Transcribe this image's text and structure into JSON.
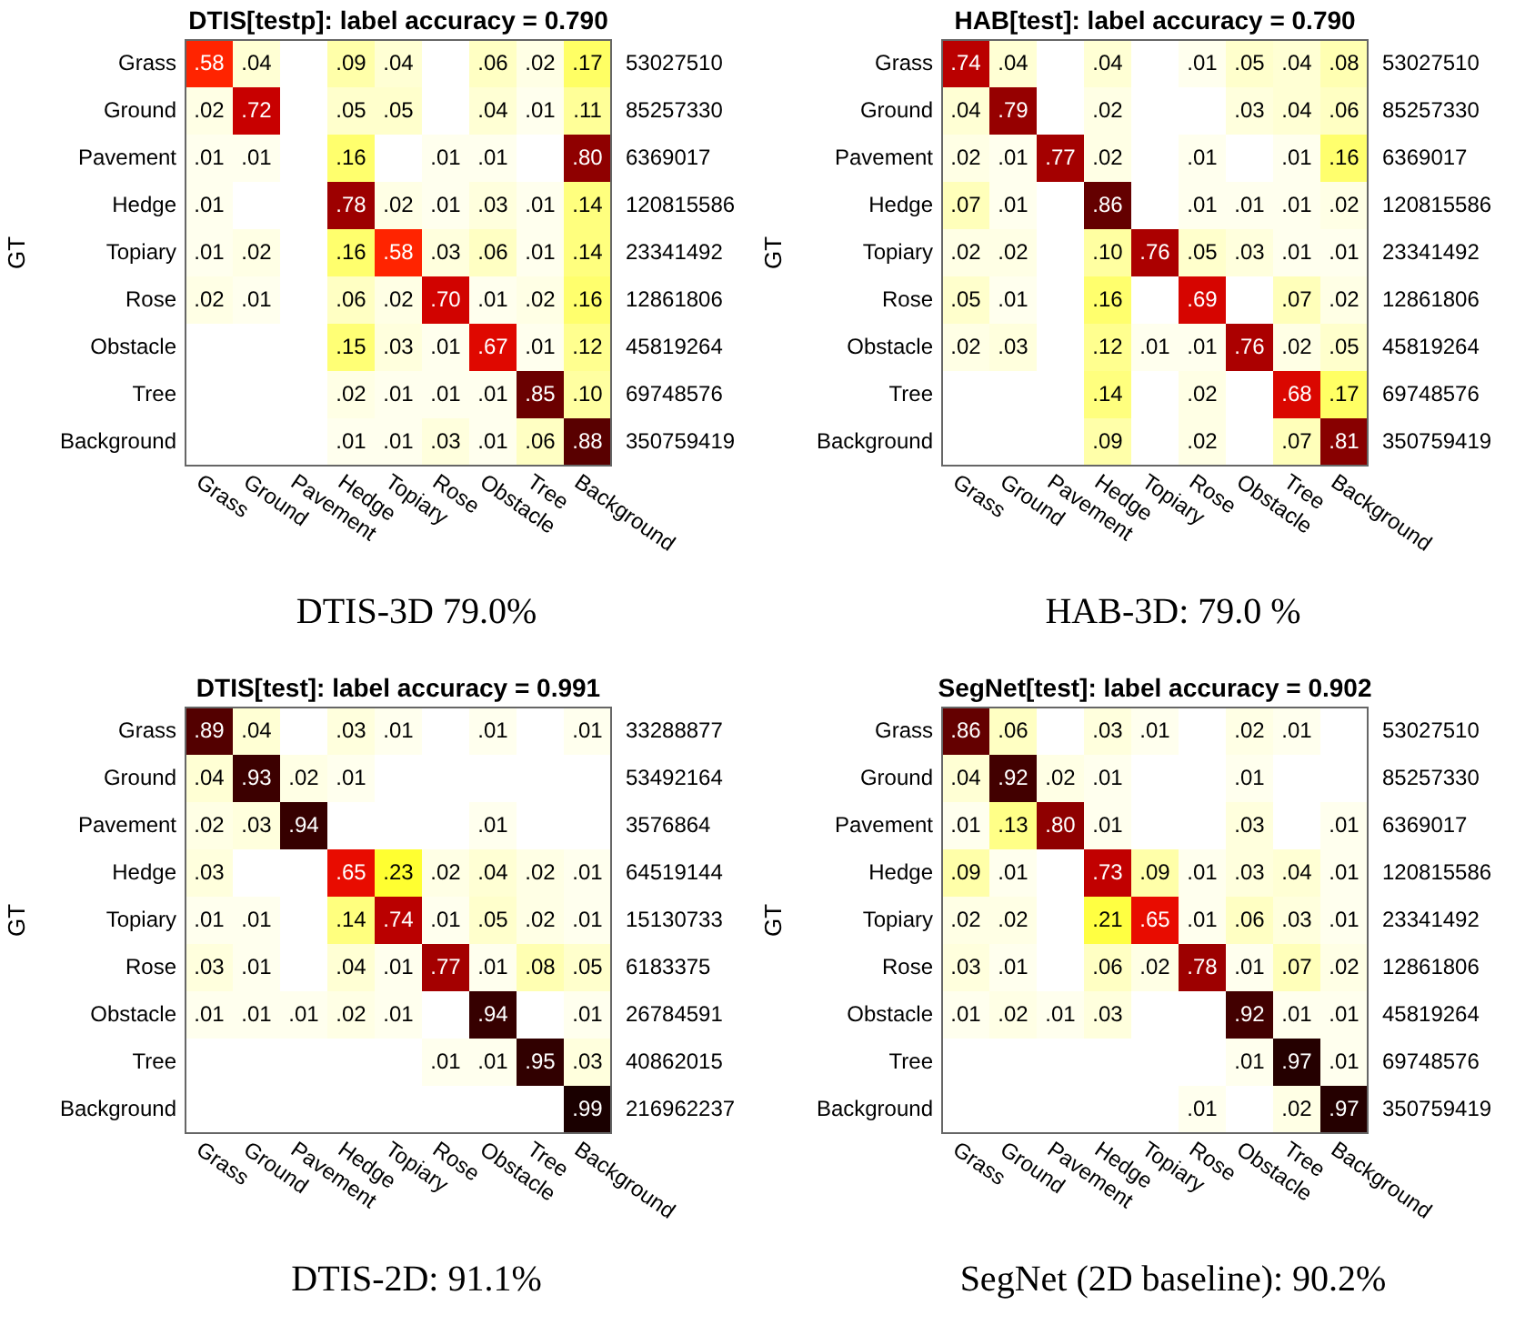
{
  "chart_data": [
    {
      "type": "heatmap",
      "title": "DTIS[testp]: label accuracy = 0.790",
      "ylabel": "GT",
      "annotations": [
        "DTIS-3D 79.0%"
      ],
      "categories": [
        "Grass",
        "Ground",
        "Pavement",
        "Hedge",
        "Topiary",
        "Rose",
        "Obstacle",
        "Tree",
        "Background"
      ],
      "y_categories": [
        "Grass",
        "Ground",
        "Pavement",
        "Hedge",
        "Topiary",
        "Rose",
        "Obstacle",
        "Tree",
        "Background"
      ],
      "y2_categories": [
        "53027510",
        "85257330",
        "6369017",
        "120815586",
        "23341492",
        "12861806",
        "45819264",
        "69748576",
        "350759419"
      ],
      "cells": [
        [
          0.58,
          0.04,
          null,
          0.09,
          0.04,
          null,
          0.06,
          0.02,
          0.17
        ],
        [
          0.02,
          0.72,
          null,
          0.05,
          0.05,
          null,
          0.04,
          0.01,
          0.11
        ],
        [
          0.01,
          0.01,
          null,
          0.16,
          null,
          0.01,
          0.01,
          null,
          0.8
        ],
        [
          0.01,
          null,
          null,
          0.78,
          0.02,
          0.01,
          0.03,
          0.01,
          0.14
        ],
        [
          0.01,
          0.02,
          null,
          0.16,
          0.58,
          0.03,
          0.06,
          0.01,
          0.14
        ],
        [
          0.02,
          0.01,
          null,
          0.06,
          0.02,
          0.7,
          0.01,
          0.02,
          0.16
        ],
        [
          null,
          null,
          null,
          0.15,
          0.03,
          0.01,
          0.67,
          0.01,
          0.12
        ],
        [
          null,
          null,
          null,
          0.02,
          0.01,
          0.01,
          0.01,
          0.85,
          0.1
        ],
        [
          null,
          null,
          null,
          0.01,
          0.01,
          0.03,
          0.01,
          0.06,
          0.88
        ]
      ],
      "cell_labels": [
        [
          ".58",
          ".04",
          null,
          ".09",
          ".04",
          null,
          ".06",
          ".02",
          ".17"
        ],
        [
          ".02",
          ".72",
          null,
          ".05",
          ".05",
          null,
          ".04",
          ".01",
          ".11"
        ],
        [
          ".01",
          ".01",
          null,
          ".16",
          null,
          ".01",
          ".01",
          null,
          ".80"
        ],
        [
          ".01",
          null,
          null,
          ".78",
          ".02",
          ".01",
          ".03",
          ".01",
          ".14"
        ],
        [
          ".01",
          ".02",
          null,
          ".16",
          ".58",
          ".03",
          ".06",
          ".01",
          ".14"
        ],
        [
          ".02",
          ".01",
          null,
          ".06",
          ".02",
          ".70",
          ".01",
          ".02",
          ".16"
        ],
        [
          null,
          null,
          null,
          ".15",
          ".03",
          ".01",
          ".67",
          ".01",
          ".12"
        ],
        [
          null,
          null,
          null,
          ".02",
          ".01",
          ".01",
          ".01",
          ".85",
          ".10"
        ],
        [
          null,
          null,
          null,
          ".01",
          ".01",
          ".03",
          ".01",
          ".06",
          ".88"
        ]
      ]
    },
    {
      "type": "heatmap",
      "title": "HAB[test]: label accuracy = 0.790",
      "ylabel": "GT",
      "annotations": [
        "HAB-3D: 79.0 %"
      ],
      "categories": [
        "Grass",
        "Ground",
        "Pavement",
        "Hedge",
        "Topiary",
        "Rose",
        "Obstacle",
        "Tree",
        "Background"
      ],
      "y_categories": [
        "Grass",
        "Ground",
        "Pavement",
        "Hedge",
        "Topiary",
        "Rose",
        "Obstacle",
        "Tree",
        "Background"
      ],
      "y2_categories": [
        "53027510",
        "85257330",
        "6369017",
        "120815586",
        "23341492",
        "12861806",
        "45819264",
        "69748576",
        "350759419"
      ],
      "cells": [
        [
          0.74,
          0.04,
          null,
          0.04,
          null,
          0.01,
          0.05,
          0.04,
          0.08
        ],
        [
          0.04,
          0.79,
          null,
          0.02,
          null,
          null,
          0.03,
          0.04,
          0.06
        ],
        [
          0.02,
          0.01,
          0.77,
          0.02,
          null,
          0.01,
          null,
          0.01,
          0.16
        ],
        [
          0.07,
          0.01,
          null,
          0.86,
          null,
          0.01,
          0.01,
          0.01,
          0.02
        ],
        [
          0.02,
          0.02,
          null,
          0.1,
          0.76,
          0.05,
          0.03,
          0.01,
          0.01
        ],
        [
          0.05,
          0.01,
          null,
          0.16,
          null,
          0.69,
          null,
          0.07,
          0.02
        ],
        [
          0.02,
          0.03,
          null,
          0.12,
          0.01,
          0.01,
          0.76,
          0.02,
          0.05
        ],
        [
          null,
          null,
          null,
          0.14,
          null,
          0.02,
          null,
          0.68,
          0.17
        ],
        [
          null,
          null,
          null,
          0.09,
          null,
          0.02,
          null,
          0.07,
          0.81
        ]
      ],
      "cell_labels": [
        [
          ".74",
          ".04",
          null,
          ".04",
          null,
          ".01",
          ".05",
          ".04",
          ".08"
        ],
        [
          ".04",
          ".79",
          null,
          ".02",
          null,
          null,
          ".03",
          ".04",
          ".06"
        ],
        [
          ".02",
          ".01",
          ".77",
          ".02",
          null,
          ".01",
          null,
          ".01",
          ".16"
        ],
        [
          ".07",
          ".01",
          null,
          ".86",
          null,
          ".01",
          ".01",
          ".01",
          ".02"
        ],
        [
          ".02",
          ".02",
          null,
          ".10",
          ".76",
          ".05",
          ".03",
          ".01",
          ".01"
        ],
        [
          ".05",
          ".01",
          null,
          ".16",
          null,
          ".69",
          null,
          ".07",
          ".02"
        ],
        [
          ".02",
          ".03",
          null,
          ".12",
          ".01",
          ".01",
          ".76",
          ".02",
          ".05"
        ],
        [
          null,
          null,
          null,
          ".14",
          null,
          ".02",
          null,
          ".68",
          ".17"
        ],
        [
          null,
          null,
          null,
          ".09",
          null,
          ".02",
          null,
          ".07",
          ".81"
        ]
      ]
    },
    {
      "type": "heatmap",
      "title": "DTIS[test]: label accuracy = 0.991",
      "ylabel": "GT",
      "annotations": [
        "DTIS-2D: 91.1%"
      ],
      "categories": [
        "Grass",
        "Ground",
        "Pavement",
        "Hedge",
        "Topiary",
        "Rose",
        "Obstacle",
        "Tree",
        "Background"
      ],
      "y_categories": [
        "Grass",
        "Ground",
        "Pavement",
        "Hedge",
        "Topiary",
        "Rose",
        "Obstacle",
        "Tree",
        "Background"
      ],
      "y2_categories": [
        "33288877",
        "53492164",
        "3576864",
        "64519144",
        "15130733",
        "6183375",
        "26784591",
        "40862015",
        "216962237"
      ],
      "cells": [
        [
          0.89,
          0.04,
          null,
          0.03,
          0.01,
          null,
          0.01,
          null,
          0.01
        ],
        [
          0.04,
          0.93,
          0.02,
          0.01,
          null,
          null,
          null,
          null,
          null
        ],
        [
          0.02,
          0.03,
          0.94,
          null,
          null,
          null,
          0.01,
          null,
          null
        ],
        [
          0.03,
          null,
          null,
          0.65,
          0.23,
          0.02,
          0.04,
          0.02,
          0.01
        ],
        [
          0.01,
          0.01,
          null,
          0.14,
          0.74,
          0.01,
          0.05,
          0.02,
          0.01
        ],
        [
          0.03,
          0.01,
          null,
          0.04,
          0.01,
          0.77,
          0.01,
          0.08,
          0.05
        ],
        [
          0.01,
          0.01,
          0.01,
          0.02,
          0.01,
          null,
          0.94,
          null,
          0.01
        ],
        [
          null,
          null,
          null,
          null,
          null,
          0.01,
          0.01,
          0.95,
          0.03
        ],
        [
          null,
          null,
          null,
          null,
          null,
          null,
          null,
          null,
          0.99
        ]
      ],
      "cell_labels": [
        [
          ".89",
          ".04",
          null,
          ".03",
          ".01",
          null,
          ".01",
          null,
          ".01"
        ],
        [
          ".04",
          ".93",
          ".02",
          ".01",
          null,
          null,
          null,
          null,
          null
        ],
        [
          ".02",
          ".03",
          ".94",
          null,
          null,
          null,
          ".01",
          null,
          null
        ],
        [
          ".03",
          null,
          null,
          ".65",
          ".23",
          ".02",
          ".04",
          ".02",
          ".01"
        ],
        [
          ".01",
          ".01",
          null,
          ".14",
          ".74",
          ".01",
          ".05",
          ".02",
          ".01"
        ],
        [
          ".03",
          ".01",
          null,
          ".04",
          ".01",
          ".77",
          ".01",
          ".08",
          ".05"
        ],
        [
          ".01",
          ".01",
          ".01",
          ".02",
          ".01",
          null,
          ".94",
          null,
          ".01"
        ],
        [
          null,
          null,
          null,
          null,
          null,
          ".01",
          ".01",
          ".95",
          ".03"
        ],
        [
          null,
          null,
          null,
          null,
          null,
          null,
          null,
          null,
          ".99"
        ]
      ]
    },
    {
      "type": "heatmap",
      "title": "SegNet[test]: label accuracy = 0.902",
      "ylabel": "GT",
      "annotations": [
        "SegNet (2D baseline): 90.2%"
      ],
      "categories": [
        "Grass",
        "Ground",
        "Pavement",
        "Hedge",
        "Topiary",
        "Rose",
        "Obstacle",
        "Tree",
        "Background"
      ],
      "y_categories": [
        "Grass",
        "Ground",
        "Pavement",
        "Hedge",
        "Topiary",
        "Rose",
        "Obstacle",
        "Tree",
        "Background"
      ],
      "y2_categories": [
        "53027510",
        "85257330",
        "6369017",
        "120815586",
        "23341492",
        "12861806",
        "45819264",
        "69748576",
        "350759419"
      ],
      "cells": [
        [
          0.86,
          0.06,
          null,
          0.03,
          0.01,
          null,
          0.02,
          0.01,
          null
        ],
        [
          0.04,
          0.92,
          0.02,
          0.01,
          null,
          null,
          0.01,
          null,
          null
        ],
        [
          0.01,
          0.13,
          0.8,
          0.01,
          null,
          null,
          0.03,
          null,
          0.01
        ],
        [
          0.09,
          0.01,
          null,
          0.73,
          0.09,
          0.01,
          0.03,
          0.04,
          0.01
        ],
        [
          0.02,
          0.02,
          null,
          0.21,
          0.65,
          0.01,
          0.06,
          0.03,
          0.01
        ],
        [
          0.03,
          0.01,
          null,
          0.06,
          0.02,
          0.78,
          0.01,
          0.07,
          0.02
        ],
        [
          0.01,
          0.02,
          0.01,
          0.03,
          null,
          null,
          0.92,
          0.01,
          0.01
        ],
        [
          null,
          null,
          null,
          null,
          null,
          null,
          0.01,
          0.97,
          0.01
        ],
        [
          null,
          null,
          null,
          null,
          null,
          0.01,
          null,
          0.02,
          0.97
        ]
      ],
      "cell_labels": [
        [
          ".86",
          ".06",
          null,
          ".03",
          ".01",
          null,
          ".02",
          ".01",
          null
        ],
        [
          ".04",
          ".92",
          ".02",
          ".01",
          null,
          null,
          ".01",
          null,
          null
        ],
        [
          ".01",
          ".13",
          ".80",
          ".01",
          null,
          null,
          ".03",
          null,
          ".01"
        ],
        [
          ".09",
          ".01",
          null,
          ".73",
          ".09",
          ".01",
          ".03",
          ".04",
          ".01"
        ],
        [
          ".02",
          ".02",
          null,
          ".21",
          ".65",
          ".01",
          ".06",
          ".03",
          ".01"
        ],
        [
          ".03",
          ".01",
          null,
          ".06",
          ".02",
          ".78",
          ".01",
          ".07",
          ".02"
        ],
        [
          ".01",
          ".02",
          ".01",
          ".03",
          null,
          null,
          ".92",
          ".01",
          ".01"
        ],
        [
          null,
          null,
          null,
          null,
          null,
          null,
          ".01",
          ".97",
          ".01"
        ],
        [
          null,
          null,
          null,
          null,
          null,
          ".01",
          null,
          ".02",
          ".97"
        ]
      ]
    }
  ]
}
